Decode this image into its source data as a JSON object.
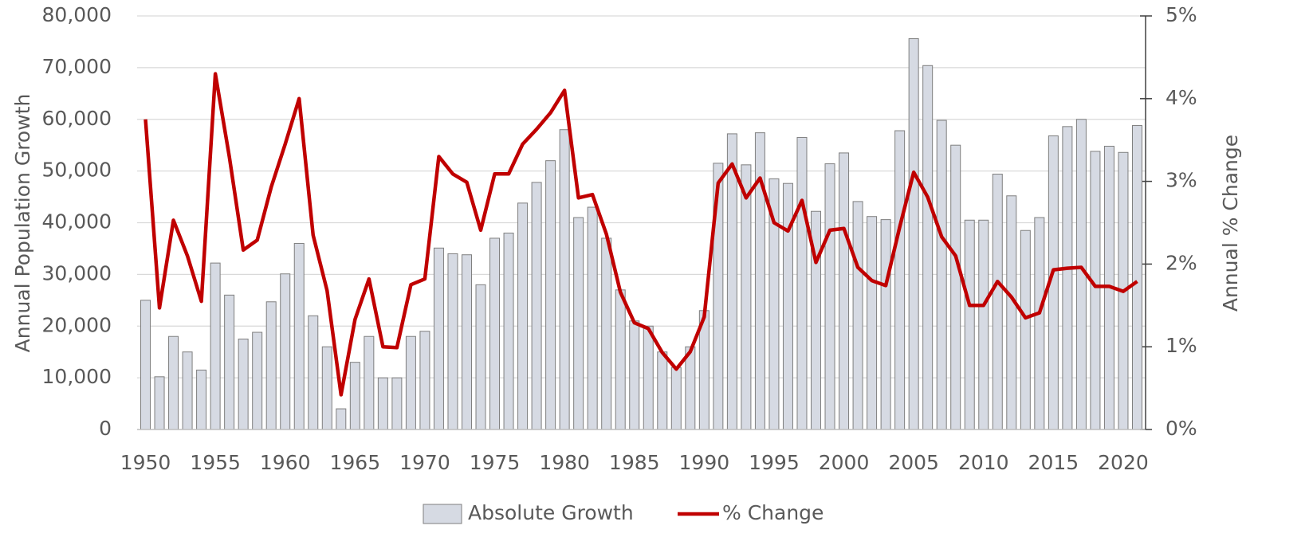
{
  "chart_data": {
    "type": "bar_line",
    "x": [
      1950,
      1951,
      1952,
      1953,
      1954,
      1955,
      1956,
      1957,
      1958,
      1959,
      1960,
      1961,
      1962,
      1963,
      1964,
      1965,
      1966,
      1967,
      1968,
      1969,
      1970,
      1971,
      1972,
      1973,
      1974,
      1975,
      1976,
      1977,
      1978,
      1979,
      1980,
      1981,
      1982,
      1983,
      1984,
      1985,
      1986,
      1987,
      1988,
      1989,
      1990,
      1991,
      1992,
      1993,
      1994,
      1995,
      1996,
      1997,
      1998,
      1999,
      2000,
      2001,
      2002,
      2003,
      2004,
      2005,
      2006,
      2007,
      2008,
      2009,
      2010,
      2011,
      2012,
      2013,
      2014,
      2015,
      2016,
      2017,
      2018,
      2019,
      2020,
      2021
    ],
    "xlim": [
      1949.4,
      2021.6
    ],
    "xticks": [
      1950,
      1955,
      1960,
      1965,
      1970,
      1975,
      1980,
      1985,
      1990,
      1995,
      2000,
      2005,
      2010,
      2015,
      2020
    ],
    "series": [
      {
        "name": "Absolute Growth",
        "type": "bar",
        "color": "#d6dae3",
        "values": [
          25000,
          10200,
          18000,
          15000,
          11500,
          32200,
          26000,
          17500,
          18800,
          24700,
          30100,
          36000,
          22000,
          16000,
          4000,
          13000,
          18000,
          10000,
          10000,
          18000,
          19000,
          35100,
          34000,
          33800,
          28000,
          37000,
          38000,
          43800,
          47800,
          52000,
          58000,
          41000,
          43000,
          37000,
          27000,
          21000,
          20000,
          15000,
          12000,
          16000,
          23000,
          51500,
          57200,
          51200,
          57400,
          48500,
          47600,
          56500,
          42200,
          51400,
          53500,
          44100,
          41200,
          40600,
          57800,
          75600,
          70400,
          59800,
          55000,
          40500,
          40500,
          49400,
          45200,
          38500,
          41000,
          56800,
          58600,
          60000,
          53800,
          54800,
          53600,
          58800
        ]
      },
      {
        "name": "% Change",
        "type": "line",
        "axis": "y2",
        "color": "#c00000",
        "values": [
          3.75,
          1.47,
          2.53,
          2.1,
          1.55,
          4.3,
          3.3,
          2.17,
          2.29,
          2.93,
          3.45,
          4.0,
          2.35,
          1.68,
          0.42,
          1.33,
          1.82,
          1.0,
          0.99,
          1.75,
          1.82,
          3.3,
          3.09,
          2.99,
          2.41,
          3.09,
          3.09,
          3.45,
          3.63,
          3.83,
          4.1,
          2.8,
          2.84,
          2.36,
          1.66,
          1.29,
          1.22,
          0.93,
          0.73,
          0.94,
          1.36,
          2.98,
          3.21,
          2.8,
          3.04,
          2.5,
          2.4,
          2.77,
          2.02,
          2.41,
          2.43,
          1.96,
          1.8,
          1.74,
          2.45,
          3.11,
          2.81,
          2.33,
          2.1,
          1.5,
          1.5,
          1.79,
          1.6,
          1.35,
          1.41,
          1.93,
          1.95,
          1.96,
          1.73,
          1.73,
          1.67,
          1.79
        ]
      }
    ],
    "y_label": "Annual Population Growth",
    "y2_label": "Annual % Change",
    "ylim": [
      0,
      80000
    ],
    "yticks": [
      0,
      {
        "value": 10000,
        "label": "10,000"
      },
      {
        "value": 20000,
        "label": "20,000"
      },
      {
        "value": 30000,
        "label": "30,000"
      },
      {
        "value": 40000,
        "label": "40,000"
      },
      {
        "value": 50000,
        "label": "50,000"
      },
      {
        "value": 60000,
        "label": "60,000"
      },
      {
        "value": 70000,
        "label": "70,000"
      },
      {
        "value": 80000,
        "label": "80,000"
      }
    ],
    "y2lim": [
      0,
      5
    ],
    "y2ticks": [
      {
        "value": 0,
        "label": "0%"
      },
      {
        "value": 1,
        "label": "1%"
      },
      {
        "value": 2,
        "label": "2%"
      },
      {
        "value": 3,
        "label": "3%"
      },
      {
        "value": 4,
        "label": "4%"
      },
      {
        "value": 5,
        "label": "5%"
      }
    ],
    "grid": true,
    "legend": "bottom"
  }
}
